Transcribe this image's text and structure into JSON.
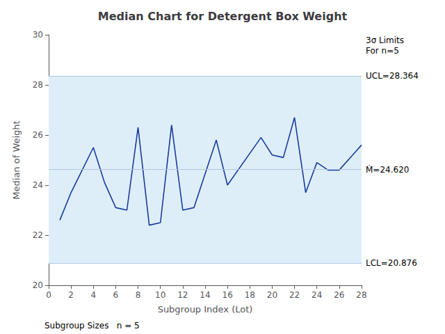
{
  "chart_data": {
    "type": "line",
    "title": "Median Chart for Detergent Box Weight",
    "xlabel": "Subgroup Index (Lot)",
    "ylabel": "Median of Weight",
    "x": [
      1,
      2,
      4,
      5,
      6,
      7,
      8,
      9,
      10,
      11,
      12,
      13,
      15,
      16,
      19,
      20,
      21,
      22,
      23,
      24,
      25,
      26,
      28
    ],
    "values": [
      22.6,
      23.7,
      25.5,
      24.1,
      23.1,
      23.0,
      26.3,
      22.4,
      22.5,
      26.4,
      23.0,
      23.1,
      25.8,
      24.0,
      25.9,
      25.2,
      25.1,
      26.7,
      23.7,
      24.9,
      24.6,
      24.6,
      25.6
    ],
    "color": "#1b3a9e",
    "xlim": [
      0,
      28
    ],
    "xticks": [
      0,
      2,
      4,
      6,
      8,
      10,
      12,
      14,
      16,
      18,
      20,
      22,
      24,
      26,
      28
    ],
    "ylim": [
      20,
      30
    ],
    "yticks": [
      20,
      22,
      24,
      26,
      28,
      30
    ],
    "grid": false,
    "control_limits": [
      {
        "value": 28.364,
        "label": "UCL=28.364"
      },
      {
        "value": 24.62,
        "label": "Ṁ=24.620"
      },
      {
        "value": 20.876,
        "label": "LCL=20.876"
      }
    ],
    "limit_color": "#b0c8de",
    "band_color": "#ddeef8",
    "annotations": [
      {
        "text": "3σ Limits\nFor n=5",
        "y": 30
      }
    ],
    "footer": "Subgroup Sizes   n = 5"
  }
}
